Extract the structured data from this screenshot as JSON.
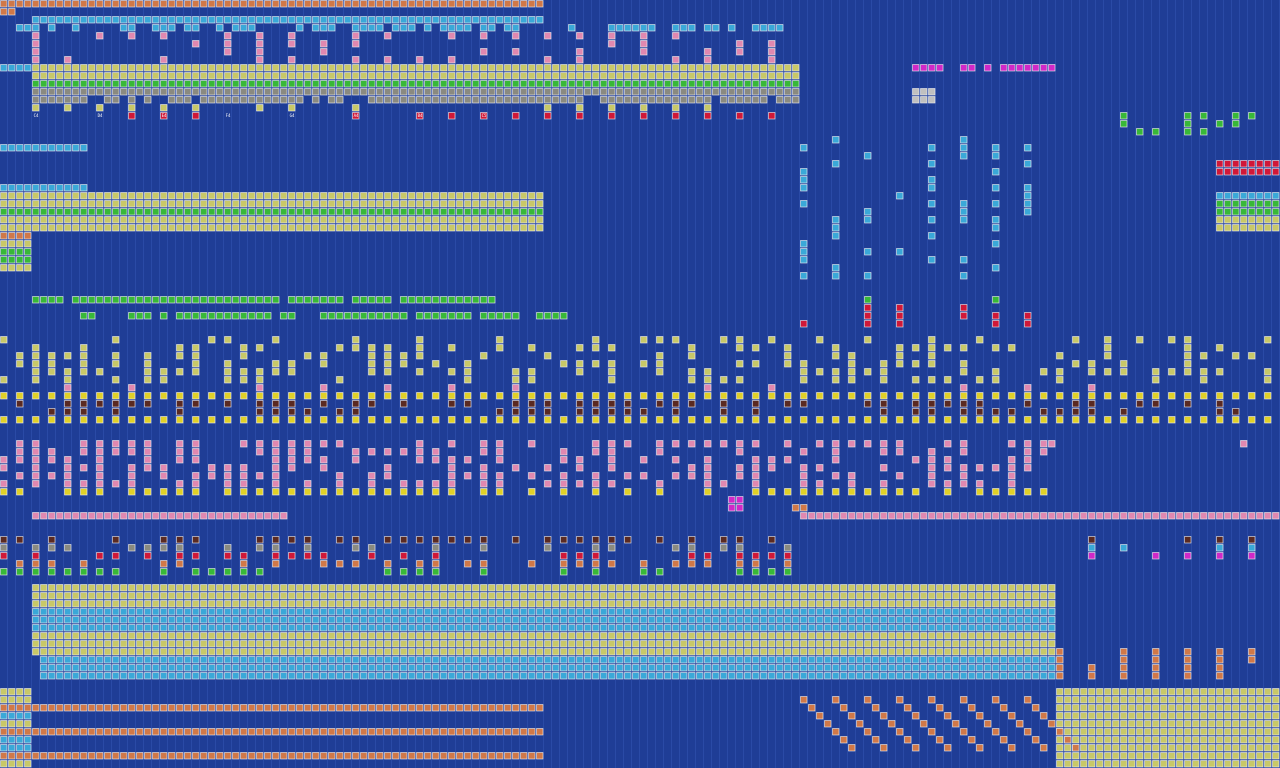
{
  "tile_labels": [
    "C4",
    "D4",
    "E4",
    "F4",
    "G4",
    "A4",
    "B4",
    "C5"
  ]
}
